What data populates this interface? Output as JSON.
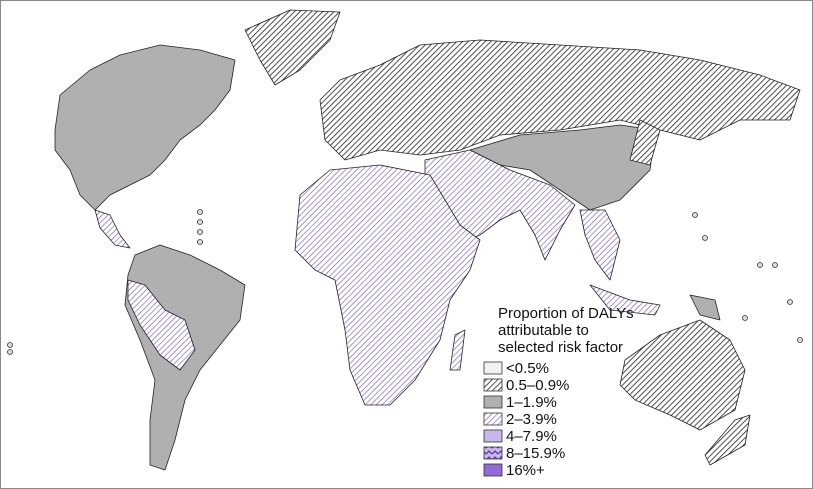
{
  "legend": {
    "title_lines": [
      "Proportion of DALYs",
      "attributable to",
      "selected risk factor"
    ],
    "items": [
      "<0.5%",
      "0.5–0.9%",
      "1–1.9%",
      "2–3.9%",
      "4–7.9%",
      "8–15.9%",
      "16%+"
    ]
  }
}
